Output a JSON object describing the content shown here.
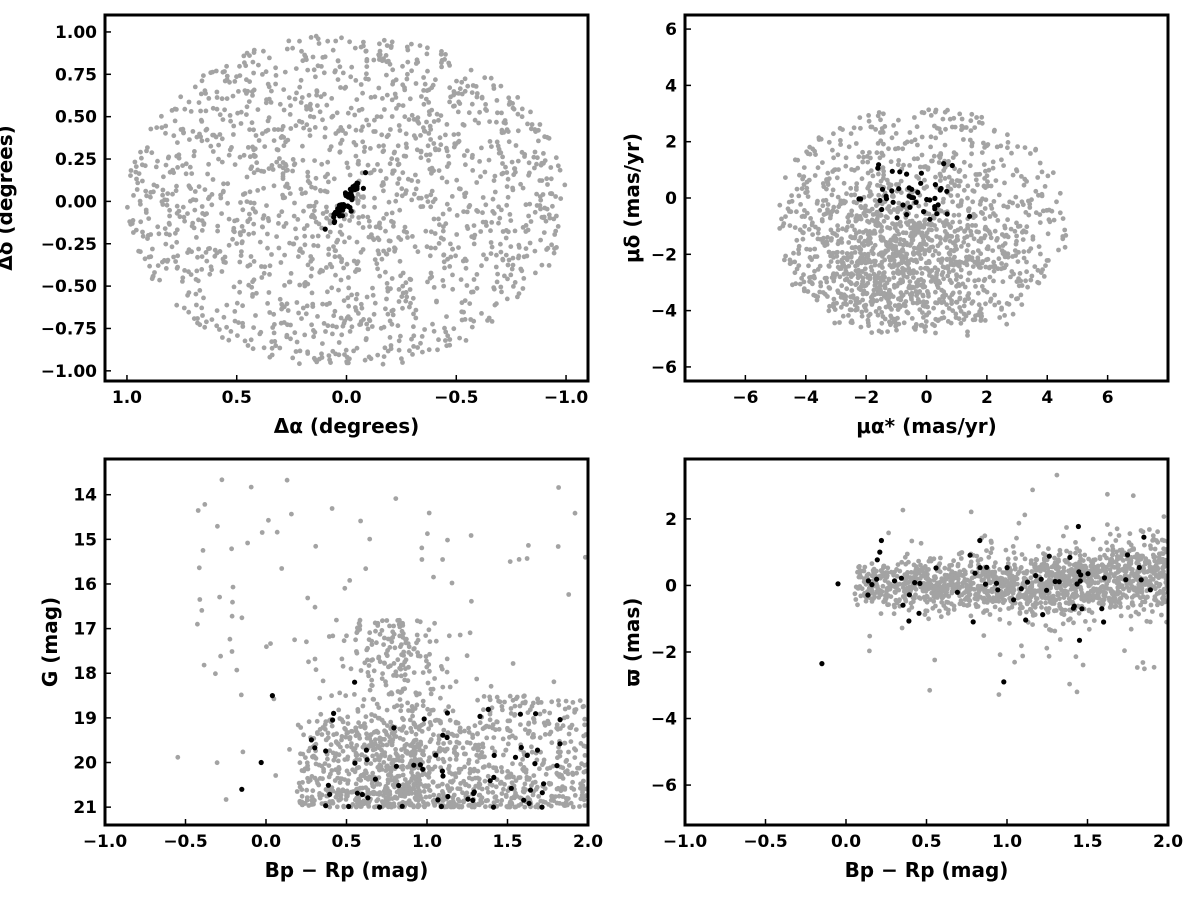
{
  "colors": {
    "field_stars": "#a3a3a3",
    "members": "#000000",
    "axes": "#000000",
    "background": "#ffffff"
  },
  "chart_data": [
    {
      "id": "sky",
      "type": "scatter",
      "xlabel": "Δα (degrees)",
      "ylabel": "Δδ (degrees)",
      "xlim": [
        1.1,
        -1.1
      ],
      "ylim": [
        -1.06,
        1.1
      ],
      "x_inverted": true,
      "xticks": [
        1.0,
        0.5,
        0.0,
        -0.5,
        -1.0
      ],
      "xtick_labels": [
        "1.0",
        "0.5",
        "0.0",
        "−0.5",
        "−1.0"
      ],
      "yticks": [
        -1.0,
        -0.75,
        -0.5,
        -0.25,
        0.0,
        0.25,
        0.5,
        0.75,
        1.0
      ],
      "ytick_labels": [
        "−1.00",
        "−0.75",
        "−0.50",
        "−0.25",
        "0.00",
        "0.25",
        "0.50",
        "0.75",
        "1.00"
      ],
      "grid": false,
      "series": [
        {
          "role": "field",
          "color": "#a3a3a3",
          "count": 1600,
          "description_of_distribution": "uniform disk radius 1 deg centred on 0,0"
        },
        {
          "role": "members",
          "color": "#000000",
          "count": 60,
          "description_of_distribution": "elongated clump near centre along a diagonal"
        }
      ]
    },
    {
      "id": "proper_motion",
      "type": "scatter",
      "xlabel": "μα* (mas/yr)",
      "ylabel": "μδ (mas/yr)",
      "xlim": [
        -8,
        8
      ],
      "ylim": [
        -6.5,
        6.5
      ],
      "xticks": [
        -6,
        -4,
        -2,
        0,
        2,
        4,
        6
      ],
      "xtick_labels": [
        "−6",
        "−4",
        "−2",
        "0",
        "2",
        "4",
        "6"
      ],
      "yticks": [
        -6,
        -4,
        -2,
        0,
        2,
        4,
        6
      ],
      "ytick_labels": [
        "−6",
        "−4",
        "−2",
        "0",
        "2",
        "4",
        "6"
      ],
      "grid": false,
      "series": [
        {
          "role": "field",
          "color": "#a3a3a3",
          "count": 1600,
          "description_of_distribution": "disk radius ~5 mas/yr centred near (0,-1.3), denser at negative values"
        },
        {
          "role": "members",
          "color": "#000000",
          "count": 45,
          "description_of_distribution": "clump centred near (-0.3, 0)"
        }
      ]
    },
    {
      "id": "cmd",
      "type": "scatter",
      "xlabel": "Bp − Rp (mag)",
      "ylabel": "G (mag)",
      "xlim": [
        -1.0,
        2.0
      ],
      "ylim": [
        21.4,
        13.2
      ],
      "y_inverted": true,
      "xticks": [
        -1.0,
        -0.5,
        0.0,
        0.5,
        1.0,
        1.5,
        2.0
      ],
      "xtick_labels": [
        "−1.0",
        "−0.5",
        "0.0",
        "0.5",
        "1.0",
        "1.5",
        "2.0"
      ],
      "yticks": [
        14,
        15,
        16,
        17,
        18,
        19,
        20,
        21
      ],
      "ytick_labels": [
        "14",
        "15",
        "16",
        "17",
        "18",
        "19",
        "20",
        "21"
      ],
      "grid": false,
      "series": [
        {
          "role": "field",
          "color": "#a3a3a3",
          "count": 1500,
          "description_of_distribution": "dense band at G 19-21 for colour 0.3-2.0, with a plume down to G~17 near colour 0.8"
        },
        {
          "role": "members",
          "color": "#000000",
          "count": 60,
          "description_of_distribution": "scattered mostly in G 18.2-21, colour -0.2 to 1.9"
        }
      ]
    },
    {
      "id": "parallax",
      "type": "scatter",
      "xlabel": "Bp − Rp (mag)",
      "ylabel": "ϖ (mas)",
      "xlim": [
        -1.0,
        2.0
      ],
      "ylim": [
        -7.2,
        3.8
      ],
      "xticks": [
        -1.0,
        -0.5,
        0.0,
        0.5,
        1.0,
        1.5,
        2.0
      ],
      "xtick_labels": [
        "−1.0",
        "−0.5",
        "0.0",
        "0.5",
        "1.0",
        "1.5",
        "2.0"
      ],
      "yticks": [
        -6,
        -4,
        -2,
        0,
        2
      ],
      "ytick_labels": [
        "−6",
        "−4",
        "−2",
        "0",
        "2"
      ],
      "grid": false,
      "series": [
        {
          "role": "field",
          "color": "#a3a3a3",
          "count": 1500,
          "description_of_distribution": "horizontal band around parallax 0, spreading upward slightly at red colours"
        },
        {
          "role": "members",
          "color": "#000000",
          "count": 55,
          "description_of_distribution": "scattered around parallax 0, colour 0.0-1.9"
        }
      ]
    }
  ]
}
